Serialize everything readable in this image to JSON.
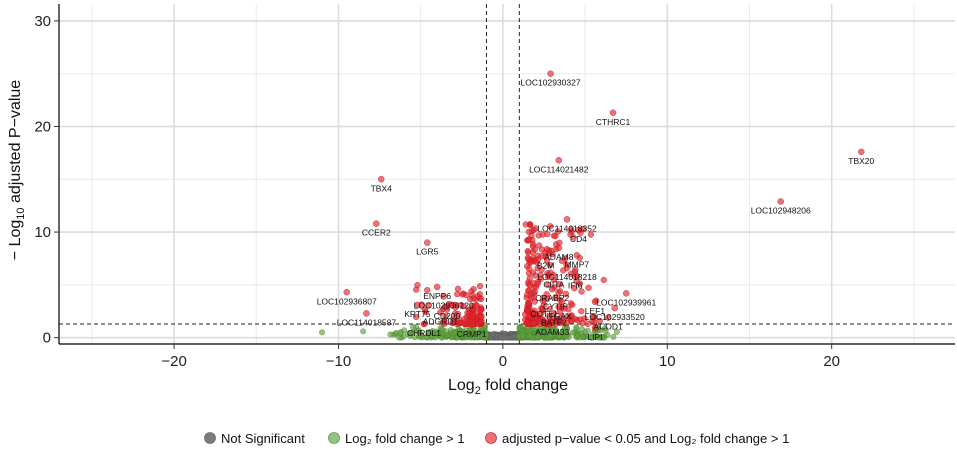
{
  "chart_data": {
    "type": "scatter",
    "title": "",
    "xlabel": {
      "prefix": "Log",
      "sub": "2",
      "suffix": " fold change"
    },
    "ylabel": {
      "prefix": "− Log",
      "sub": "10",
      "suffix": " adjusted P−value"
    },
    "xlim": [
      -27,
      27.5
    ],
    "ylim": [
      -0.6,
      31.6
    ],
    "xticks": [
      -20,
      -10,
      0,
      10,
      20
    ],
    "yticks": [
      0,
      10,
      20,
      30
    ],
    "xtick_labels": [
      "−20",
      "−10",
      "0",
      "10",
      "20"
    ],
    "ytick_labels": [
      "0",
      "10",
      "20",
      "30"
    ],
    "fc_cutoffs": [
      -1,
      1
    ],
    "p_cutoff": 1.3,
    "colors": {
      "ns": "#6e6e6e",
      "fc": "#5fa33e",
      "sig": "#e8232a"
    },
    "legend": [
      {
        "key": "ns",
        "label": "Not Significant"
      },
      {
        "key": "fc",
        "label": "Log₂ fold change > 1"
      },
      {
        "key": "sig",
        "label": "adjusted p−value < 0.05 and Log₂ fold change > 1"
      }
    ],
    "labeled_points": [
      {
        "gene": "LOC102930327",
        "x": 2.9,
        "y": 25.0
      },
      {
        "gene": "CTHRC1",
        "x": 6.7,
        "y": 21.3
      },
      {
        "gene": "LOC114021482",
        "x": 3.4,
        "y": 16.8
      },
      {
        "gene": "TBX20",
        "x": 21.8,
        "y": 17.6
      },
      {
        "gene": "LOC102948206",
        "x": 16.9,
        "y": 12.9
      },
      {
        "gene": "TBX4",
        "x": -7.4,
        "y": 15.0
      },
      {
        "gene": "CCER2",
        "x": -7.7,
        "y": 10.8
      },
      {
        "gene": "LGR5",
        "x": -4.6,
        "y": 9.0
      },
      {
        "gene": "LOC114018352",
        "x": 3.9,
        "y": 11.2
      },
      {
        "gene": "CD4",
        "x": 4.6,
        "y": 10.2
      },
      {
        "gene": "ADAM8",
        "x": 3.4,
        "y": 8.5
      },
      {
        "gene": "MMP7",
        "x": 4.5,
        "y": 7.8
      },
      {
        "gene": "B2M",
        "x": 2.6,
        "y": 7.7
      },
      {
        "gene": "LOC114018218",
        "x": 3.9,
        "y": 6.6
      },
      {
        "gene": "CIITA",
        "x": 3.1,
        "y": 5.9
      },
      {
        "gene": "IFI6",
        "x": 4.4,
        "y": 5.8
      },
      {
        "gene": "CRABP2",
        "x": 3.0,
        "y": 4.6
      },
      {
        "gene": "CYTIP",
        "x": 3.2,
        "y": 3.8
      },
      {
        "gene": "LOC102939961",
        "x": 7.5,
        "y": 4.2
      },
      {
        "gene": "LEF1",
        "x": 5.6,
        "y": 3.4
      },
      {
        "gene": "COTL1",
        "x": 2.5,
        "y": 3.1
      },
      {
        "gene": "ITGAX",
        "x": 3.4,
        "y": 2.9
      },
      {
        "gene": "LOC102933520",
        "x": 6.8,
        "y": 2.8
      },
      {
        "gene": "BATF2",
        "x": 3.1,
        "y": 2.3
      },
      {
        "gene": "ACOD1",
        "x": 6.4,
        "y": 1.9
      },
      {
        "gene": "ADAM33",
        "x": 3.0,
        "y": 1.4
      },
      {
        "gene": "LIPI",
        "x": 5.6,
        "y": 0.9
      },
      {
        "gene": "ENPP6",
        "x": -4.0,
        "y": 4.8
      },
      {
        "gene": "LOC102936807",
        "x": -9.5,
        "y": 4.3
      },
      {
        "gene": "LOC102936120",
        "x": -3.6,
        "y": 3.9
      },
      {
        "gene": "KRT75",
        "x": -5.2,
        "y": 3.1
      },
      {
        "gene": "CD200",
        "x": -3.4,
        "y": 2.9
      },
      {
        "gene": "ADGRD1",
        "x": -3.8,
        "y": 2.4
      },
      {
        "gene": "LOC114018587",
        "x": -8.3,
        "y": 2.3
      },
      {
        "gene": "CHRDL1",
        "x": -4.8,
        "y": 1.3
      },
      {
        "gene": "CRMP1",
        "x": -1.9,
        "y": 1.2
      }
    ]
  }
}
